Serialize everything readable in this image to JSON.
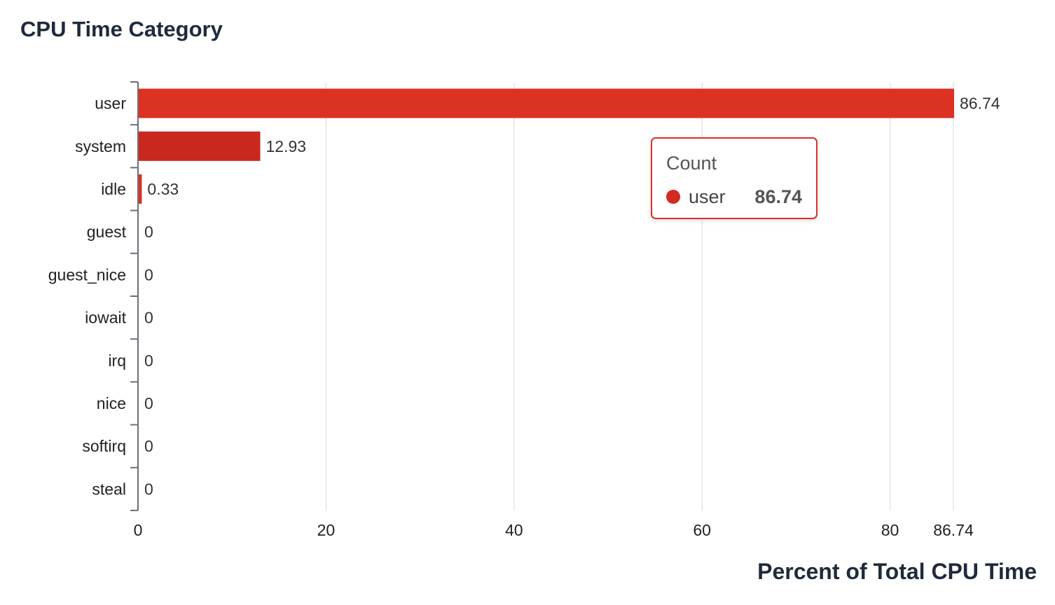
{
  "chart_data": {
    "type": "bar",
    "orientation": "horizontal",
    "title": "CPU Time Category",
    "xlabel": "Percent of Total CPU Time",
    "categories": [
      "user",
      "system",
      "idle",
      "guest",
      "guest_nice",
      "iowait",
      "irq",
      "nice",
      "softirq",
      "steal"
    ],
    "series": [
      {
        "name": "Count",
        "values": [
          86.74,
          12.93,
          0.33,
          0,
          0,
          0,
          0,
          0,
          0,
          0
        ]
      }
    ],
    "value_labels": [
      "86.74",
      "12.93",
      "0.33",
      "0",
      "0",
      "0",
      "0",
      "0",
      "0",
      "0"
    ],
    "x_ticks": [
      0,
      20,
      40,
      60,
      80,
      86.74
    ],
    "x_tick_labels": [
      "0",
      "20",
      "40",
      "60",
      "80",
      "86.74"
    ],
    "xlim": [
      0,
      86.74
    ],
    "grid": true,
    "legend": "none",
    "colors": {
      "user": "#dc3223",
      "system": "#c8281e",
      "idle": "#dc3223"
    }
  },
  "tooltip": {
    "title": "Count",
    "series_name": "user",
    "value": "86.74",
    "dot_color": "#d32a1f"
  }
}
